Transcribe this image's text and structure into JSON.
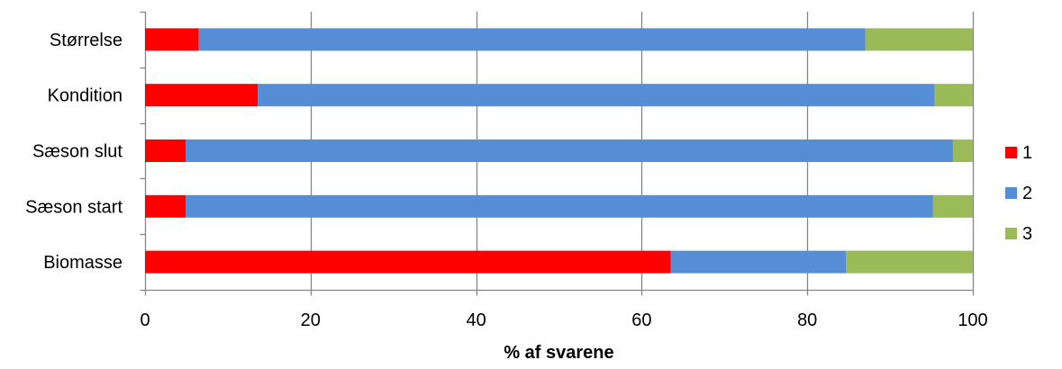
{
  "chart_data": {
    "type": "bar",
    "orientation": "horizontal",
    "stacked": true,
    "title": "",
    "xlabel": "% af svarene",
    "ylabel": "",
    "xlim": [
      0,
      100
    ],
    "x_ticks": [
      0,
      20,
      40,
      60,
      80,
      100
    ],
    "categories": [
      "Størrelse",
      "Kondition",
      "Sæson slut",
      "Sæson start",
      "Biomasse"
    ],
    "series": [
      {
        "name": "1",
        "color": "#ff0000",
        "values": [
          6.5,
          13.6,
          4.9,
          4.9,
          63.5
        ]
      },
      {
        "name": "2",
        "color": "#558ed5",
        "values": [
          80.5,
          81.8,
          92.7,
          90.3,
          21.2
        ]
      },
      {
        "name": "3",
        "color": "#9bbb59",
        "values": [
          13.0,
          4.6,
          2.4,
          4.8,
          15.3
        ]
      }
    ],
    "grid": {
      "vertical": true,
      "horizontal": false
    },
    "legend": {
      "position": "right"
    }
  }
}
